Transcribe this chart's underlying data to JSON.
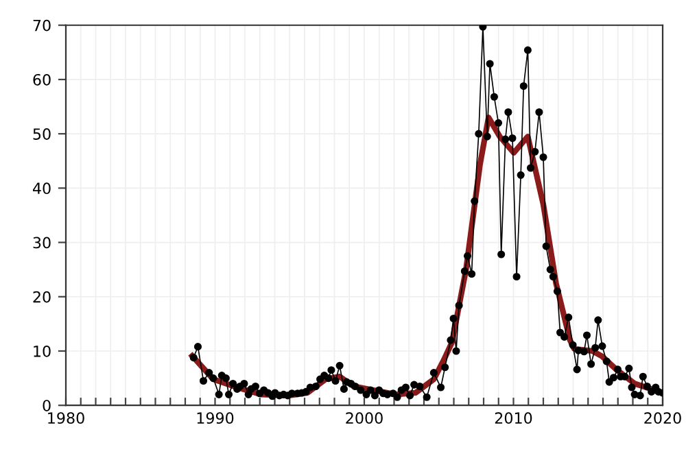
{
  "chart_data": {
    "type": "line",
    "xlim": [
      1980,
      2020
    ],
    "ylim": [
      0,
      70
    ],
    "xticks": [
      1980,
      {
        "value": 1981,
        "label": null
      },
      {
        "value": 1982,
        "label": null
      },
      {
        "value": 1983,
        "label": null
      },
      {
        "value": 1984,
        "label": null
      },
      {
        "value": 1985,
        "label": null
      },
      {
        "value": 1986,
        "label": null
      },
      {
        "value": 1987,
        "label": null
      },
      {
        "value": 1988,
        "label": null
      },
      {
        "value": 1989,
        "label": null
      },
      1990,
      {
        "value": 1991,
        "label": null
      },
      {
        "value": 1992,
        "label": null
      },
      {
        "value": 1993,
        "label": null
      },
      {
        "value": 1994,
        "label": null
      },
      {
        "value": 1995,
        "label": null
      },
      {
        "value": 1996,
        "label": null
      },
      {
        "value": 1997,
        "label": null
      },
      {
        "value": 1998,
        "label": null
      },
      {
        "value": 1999,
        "label": null
      },
      2000,
      {
        "value": 2001,
        "label": null
      },
      {
        "value": 2002,
        "label": null
      },
      {
        "value": 2003,
        "label": null
      },
      {
        "value": 2004,
        "label": null
      },
      {
        "value": 2005,
        "label": null
      },
      {
        "value": 2006,
        "label": null
      },
      {
        "value": 2007,
        "label": null
      },
      {
        "value": 2008,
        "label": null
      },
      {
        "value": 2009,
        "label": null
      },
      2010,
      {
        "value": 2011,
        "label": null
      },
      {
        "value": 2012,
        "label": null
      },
      {
        "value": 2013,
        "label": null
      },
      {
        "value": 2014,
        "label": null
      },
      {
        "value": 2015,
        "label": null
      },
      {
        "value": 2016,
        "label": null
      },
      {
        "value": 2017,
        "label": null
      },
      {
        "value": 2018,
        "label": null
      },
      {
        "value": 2019,
        "label": null
      },
      2020
    ],
    "yticks": [
      0,
      10,
      20,
      30,
      40,
      50,
      60,
      70
    ],
    "grid": true,
    "legend": false,
    "series": [
      {
        "color": "#000000",
        "marker": "circle",
        "x": [
          1988.56,
          1988.85,
          1989.22,
          1989.6,
          1989.88,
          1990.26,
          1990.45,
          1990.73,
          1990.92,
          1991.2,
          1991.48,
          1991.67,
          1991.95,
          1992.24,
          1992.42,
          1992.71,
          1992.99,
          1993.27,
          1993.55,
          1993.84,
          1994.02,
          1994.31,
          1994.59,
          1994.87,
          1995.15,
          1995.53,
          1995.81,
          1996.09,
          1996.38,
          1996.75,
          1997.04,
          1997.32,
          1997.6,
          1997.79,
          1998.07,
          1998.35,
          1998.64,
          1998.82,
          1999.11,
          1999.39,
          1999.76,
          2000.14,
          2000.42,
          2000.71,
          2000.99,
          2001.27,
          2001.55,
          2001.93,
          2002.21,
          2002.49,
          2002.78,
          2003.06,
          2003.34,
          2003.72,
          2004.19,
          2004.66,
          2005.13,
          2005.41,
          2005.79,
          2005.98,
          2006.16,
          2006.35,
          2006.73,
          2006.92,
          2007.2,
          2007.39,
          2007.67,
          2007.95,
          2008.24,
          2008.42,
          2008.71,
          2008.99,
          2009.18,
          2009.46,
          2009.65,
          2009.93,
          2010.21,
          2010.49,
          2010.68,
          2010.96,
          2011.15,
          2011.44,
          2011.72,
          2012.0,
          2012.19,
          2012.47,
          2012.66,
          2012.94,
          2013.13,
          2013.41,
          2013.69,
          2013.98,
          2014.26,
          2014.35,
          2014.73,
          2014.92,
          2015.2,
          2015.48,
          2015.67,
          2015.95,
          2016.24,
          2016.42,
          2016.71,
          2016.99,
          2017.18,
          2017.46,
          2017.74,
          2017.93,
          2018.12,
          2018.49,
          2018.68,
          2018.96,
          2019.25,
          2019.53,
          2019.72,
          2020.0
        ],
        "values": [
          8.8,
          10.8,
          4.5,
          6,
          5,
          2,
          5.5,
          5,
          2,
          4,
          3,
          3.5,
          4,
          2,
          3,
          3.5,
          2.2,
          2.8,
          2.3,
          1.7,
          2.3,
          1.8,
          2,
          1.8,
          2.2,
          2.2,
          2.3,
          2.5,
          3.3,
          3.5,
          4.8,
          5.5,
          5,
          6.5,
          4.5,
          7.3,
          3,
          4.3,
          4,
          3.5,
          2.8,
          2,
          2.8,
          1.8,
          2.8,
          2.2,
          2,
          2.2,
          1.5,
          2.8,
          3.3,
          1.8,
          3.8,
          3.5,
          1.5,
          6,
          3.3,
          7,
          12,
          16,
          10,
          18.4,
          24.7,
          27.5,
          24.2,
          37.6,
          50,
          69.7,
          49.5,
          62.9,
          56.8,
          52,
          27.8,
          49,
          54,
          49.2,
          23.7,
          42.4,
          58.8,
          65.4,
          43.7,
          46.7,
          54,
          45.7,
          29.3,
          25,
          23.7,
          21,
          13.4,
          12.6,
          16.2,
          11.1,
          6.6,
          10.1,
          9.9,
          12.9,
          7.6,
          10.6,
          15.7,
          10.9,
          8.1,
          4.3,
          5.1,
          6.6,
          5.3,
          5.3,
          6.8,
          3.3,
          2,
          1.8,
          5.3,
          3.5,
          2.5,
          3.3,
          2.5,
          2.3
        ]
      },
      {
        "color": "#8b1a1a",
        "marker": "none",
        "x": [
          1988.47,
          1989.88,
          1991.48,
          1993.08,
          1994.96,
          1996.19,
          1997.41,
          1998.35,
          1999.29,
          2000.61,
          2002.12,
          2003.44,
          2004.66,
          2005.32,
          2005.88,
          2006.82,
          2007.76,
          2008.33,
          2009.08,
          2010.02,
          2010.96,
          2012.0,
          2012.85,
          2013.79,
          2014.07,
          2015.29,
          2015.95,
          2016.89,
          2018.12,
          2020.0
        ],
        "values": [
          9.1,
          4.8,
          3.3,
          2,
          1.8,
          2.3,
          4.8,
          5.3,
          3.5,
          2.8,
          2,
          2.3,
          4.8,
          8.3,
          11.6,
          25,
          44.4,
          53,
          49.5,
          46.5,
          49.5,
          37,
          22.5,
          12,
          10.4,
          10,
          9,
          6.6,
          4,
          2.3
        ]
      }
    ]
  }
}
